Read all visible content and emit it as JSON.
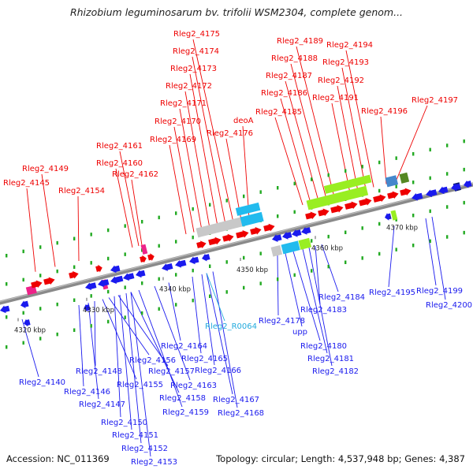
{
  "title": "Rhizobium leguminosarum bv. trifolii WSM2304, complete genom...",
  "footer": {
    "accession": "Accession: NC_011369",
    "topology": "Topology: circular; Length: 4,537,948 bp; Genes: 4,387"
  },
  "ticks": [
    "4320 kbp",
    "4330 kbp",
    "4340 kbp",
    "4350 kbp",
    "4360 kbp",
    "4370 kbp"
  ],
  "labels_forward": [
    "Rleg2_4145",
    "Rleg2_4149",
    "Rleg2_4154",
    "Rleg2_4160",
    "Rleg2_4161",
    "Rleg2_4162",
    "Rleg2_4169",
    "Rleg2_4170",
    "Rleg2_4171",
    "Rleg2_4172",
    "Rleg2_4173",
    "Rleg2_4174",
    "Rleg2_4175",
    "Rleg2_4176",
    "deoA",
    "Rleg2_4185",
    "Rleg2_4186",
    "Rleg2_4187",
    "Rleg2_4188",
    "Rleg2_4189",
    "Rleg2_4191",
    "Rleg2_4192",
    "Rleg2_4193",
    "Rleg2_4194",
    "Rleg2_4196",
    "Rleg2_4197"
  ],
  "labels_reverse": [
    "Rleg2_4140",
    "Rleg2_4146",
    "Rleg2_4147",
    "Rleg2_4148",
    "Rleg2_4150",
    "Rleg2_4151",
    "Rleg2_4152",
    "Rleg2_4153",
    "Rleg2_4155",
    "Rleg2_4156",
    "Rleg2_4157",
    "Rleg2_4158",
    "Rleg2_4159",
    "Rleg2_4163",
    "Rleg2_4164",
    "Rleg2_4165",
    "Rleg2_4166",
    "Rleg2_4167",
    "Rleg2_4168",
    "Rleg2_4178",
    "upp",
    "Rleg2_4180",
    "Rleg2_4181",
    "Rleg2_4182",
    "Rleg2_4183",
    "Rleg2_4184",
    "Rleg2_4195",
    "Rleg2_4199",
    "Rleg2_4200"
  ],
  "labels_rna": [
    "Rleg2_R0064"
  ],
  "colors": {
    "forward_gene": "#ee0000",
    "reverse_gene": "#1a1aee",
    "rna_label": "#22aadd",
    "backbone": "#8a8a8a",
    "pink_feature": "#ee2288",
    "cyan_feature": "#22bbee",
    "lime_feature": "#99ee22",
    "gray_feature": "#c8c8c8",
    "green_dots": "#22aa22"
  }
}
